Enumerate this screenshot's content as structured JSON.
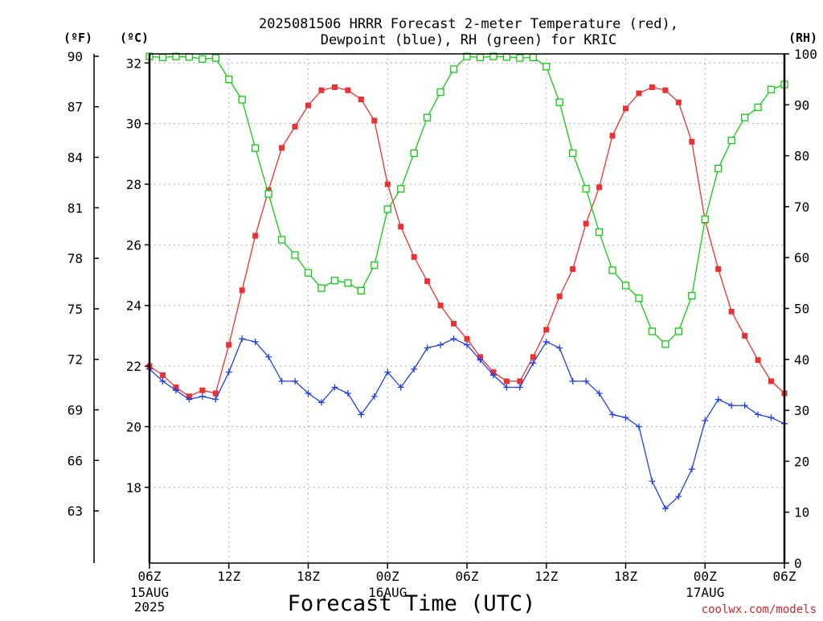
{
  "chart_data": {
    "type": "line",
    "title_line1": "2025081506 HRRR Forecast 2-meter Temperature (red),",
    "title_line2": "Dewpoint (blue), RH (green) for KRIC",
    "xlabel": "Forecast Time (UTC)",
    "credit": "coolwx.com/models",
    "unit_f": "(ºF)",
    "unit_c": "(ºC)",
    "unit_rh": "(RH)",
    "x_ticks": [
      {
        "hour": 0,
        "label": "06Z",
        "sub1": "15AUG",
        "sub2": "2025"
      },
      {
        "hour": 6,
        "label": "12Z",
        "sub1": "",
        "sub2": ""
      },
      {
        "hour": 12,
        "label": "18Z",
        "sub1": "",
        "sub2": ""
      },
      {
        "hour": 18,
        "label": "00Z",
        "sub1": "16AUG",
        "sub2": ""
      },
      {
        "hour": 24,
        "label": "06Z",
        "sub1": "",
        "sub2": ""
      },
      {
        "hour": 30,
        "label": "12Z",
        "sub1": "",
        "sub2": ""
      },
      {
        "hour": 36,
        "label": "18Z",
        "sub1": "",
        "sub2": ""
      },
      {
        "hour": 42,
        "label": "00Z",
        "sub1": "17AUG",
        "sub2": ""
      },
      {
        "hour": 48,
        "label": "06Z",
        "sub1": "",
        "sub2": ""
      }
    ],
    "x_range": [
      0,
      48
    ],
    "ylim_c": [
      15.5,
      32.3
    ],
    "ylim_rh": [
      0,
      100
    ],
    "y_ticks_c": [
      "18",
      "20",
      "22",
      "24",
      "26",
      "28",
      "30",
      "32"
    ],
    "y_ticks_f": [
      "63",
      "66",
      "69",
      "72",
      "75",
      "78",
      "81",
      "84",
      "87",
      "90"
    ],
    "y_ticks_rh": [
      "0",
      "10",
      "20",
      "30",
      "40",
      "50",
      "60",
      "70",
      "80",
      "90",
      "100"
    ],
    "grid": true,
    "series": [
      {
        "name": "Temperature",
        "axis": "c",
        "color": "#ee3030",
        "marker": "filled-square",
        "values": [
          22.0,
          21.7,
          21.3,
          21.0,
          21.2,
          21.1,
          22.7,
          24.5,
          26.3,
          27.8,
          29.2,
          29.9,
          30.6,
          31.1,
          31.2,
          31.1,
          30.8,
          30.1,
          28.0,
          26.6,
          25.6,
          24.8,
          24.0,
          23.4,
          22.9,
          22.3,
          21.8,
          21.5,
          21.5,
          22.3,
          23.2,
          24.3,
          25.2,
          26.7,
          27.9,
          29.6,
          30.5,
          31.0,
          31.2,
          31.1,
          30.7,
          29.4,
          26.8,
          25.2,
          23.8,
          23.0,
          22.2,
          21.5,
          21.1
        ]
      },
      {
        "name": "Dewpoint",
        "axis": "c",
        "color": "#2040e8",
        "marker": "plus",
        "values": [
          21.9,
          21.5,
          21.2,
          20.9,
          21.0,
          20.9,
          21.8,
          22.9,
          22.8,
          22.3,
          21.5,
          21.5,
          21.1,
          20.8,
          21.3,
          21.1,
          20.4,
          21.0,
          21.8,
          21.3,
          21.9,
          22.6,
          22.7,
          22.9,
          22.7,
          22.2,
          21.7,
          21.3,
          21.3,
          22.1,
          22.8,
          22.6,
          21.5,
          21.5,
          21.1,
          20.4,
          20.3,
          20.0,
          18.2,
          17.3,
          17.7,
          18.6,
          20.2,
          20.9,
          20.7,
          20.7,
          20.4,
          20.3,
          20.1
        ]
      },
      {
        "name": "RH",
        "axis": "rh",
        "color": "#10cc10",
        "marker": "open-square",
        "values": [
          99.5,
          99.3,
          99.5,
          99.4,
          99.0,
          99.2,
          95.0,
          91.0,
          81.5,
          72.5,
          63.5,
          60.5,
          57.0,
          54.0,
          55.5,
          55.0,
          53.5,
          58.5,
          69.5,
          73.5,
          80.5,
          87.5,
          92.5,
          97.0,
          99.5,
          99.3,
          99.5,
          99.4,
          99.2,
          99.3,
          97.5,
          90.5,
          80.5,
          73.5,
          65.0,
          57.5,
          54.5,
          52.0,
          45.5,
          43.0,
          45.5,
          52.5,
          67.5,
          77.5,
          83.0,
          87.5,
          89.5,
          93.0,
          94.0
        ]
      }
    ]
  }
}
